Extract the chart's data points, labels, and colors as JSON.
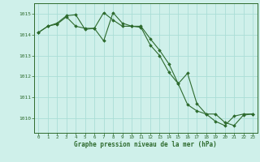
{
  "series1": {
    "x": [
      0,
      1,
      2,
      3,
      4,
      5,
      6,
      7,
      8,
      9,
      10,
      11,
      12,
      13,
      14,
      15,
      16,
      17,
      18,
      19,
      20,
      21,
      22,
      23
    ],
    "y": [
      1014.1,
      1014.4,
      1014.5,
      1014.85,
      1014.4,
      1014.3,
      1014.3,
      1013.7,
      1015.05,
      1014.55,
      1014.4,
      1014.4,
      1013.8,
      1013.25,
      1012.6,
      1011.65,
      1012.15,
      1010.7,
      1010.2,
      1010.2,
      1009.8,
      1009.65,
      1010.15,
      1010.2
    ]
  },
  "series2": {
    "x": [
      0,
      1,
      2,
      3,
      4,
      5,
      6,
      7,
      8,
      9,
      10,
      11,
      12,
      13,
      14,
      15,
      16,
      17,
      18,
      19,
      20,
      21,
      22,
      23
    ],
    "y": [
      1014.1,
      1014.4,
      1014.55,
      1014.9,
      1014.95,
      1014.25,
      1014.3,
      1015.05,
      1014.7,
      1014.4,
      1014.4,
      1014.35,
      1013.5,
      1013.0,
      1012.2,
      1011.65,
      1010.65,
      1010.35,
      1010.2,
      1009.85,
      1009.65,
      1010.1,
      1010.2,
      1010.2
    ]
  },
  "line_color": "#2d6a2d",
  "bg_color": "#cff0ea",
  "grid_color": "#aaddd6",
  "xlabel": "Graphe pression niveau de la mer (hPa)",
  "ylim": [
    1009.3,
    1015.5
  ],
  "yticks": [
    1010,
    1011,
    1012,
    1013,
    1014,
    1015
  ],
  "xlim": [
    -0.5,
    23.5
  ],
  "xticks": [
    0,
    1,
    2,
    3,
    4,
    5,
    6,
    7,
    8,
    9,
    10,
    11,
    12,
    13,
    14,
    15,
    16,
    17,
    18,
    19,
    20,
    21,
    22,
    23
  ]
}
